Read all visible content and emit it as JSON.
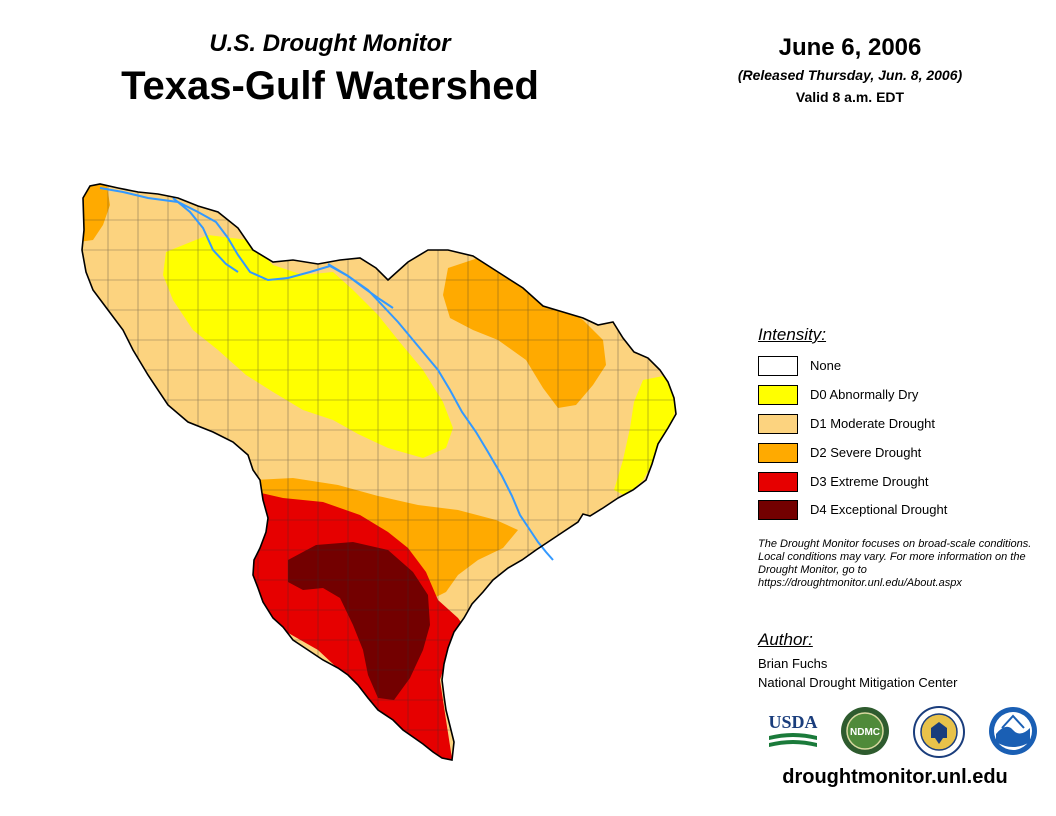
{
  "header": {
    "subtitle": "U.S. Drought Monitor",
    "title": "Texas-Gulf Watershed",
    "date": "June 6, 2006",
    "released": "(Released Thursday, Jun. 8, 2006)",
    "valid": "Valid 8 a.m. EDT"
  },
  "legend": {
    "heading": "Intensity:",
    "items": [
      {
        "label": "None",
        "color": "#FFFFFF"
      },
      {
        "label": "D0 Abnormally Dry",
        "color": "#FFFF00"
      },
      {
        "label": "D1 Moderate Drought",
        "color": "#FCD37F"
      },
      {
        "label": "D2 Severe Drought",
        "color": "#FFAA00"
      },
      {
        "label": "D3 Extreme Drought",
        "color": "#E60000"
      },
      {
        "label": "D4 Exceptional Drought",
        "color": "#730000"
      }
    ]
  },
  "note": "The Drought Monitor focuses on broad-scale conditions. Local conditions may vary. For more information on the Drought Monitor, go to https://droughtmonitor.unl.edu/About.aspx",
  "author": {
    "heading": "Author:",
    "name": "Brian Fuchs",
    "organization": "National Drought Mitigation Center"
  },
  "logos": {
    "usda": "USDA",
    "ndmc": "NDMC",
    "doc": "DOC",
    "noaa": "NOAA"
  },
  "footer": {
    "url": "droughtmonitor.unl.edu"
  },
  "colors": {
    "none": "#FFFFFF",
    "d0": "#FFFF00",
    "d1": "#FCD37F",
    "d2": "#FFAA00",
    "d3": "#E60000",
    "d4": "#730000",
    "river": "#3399FF"
  }
}
